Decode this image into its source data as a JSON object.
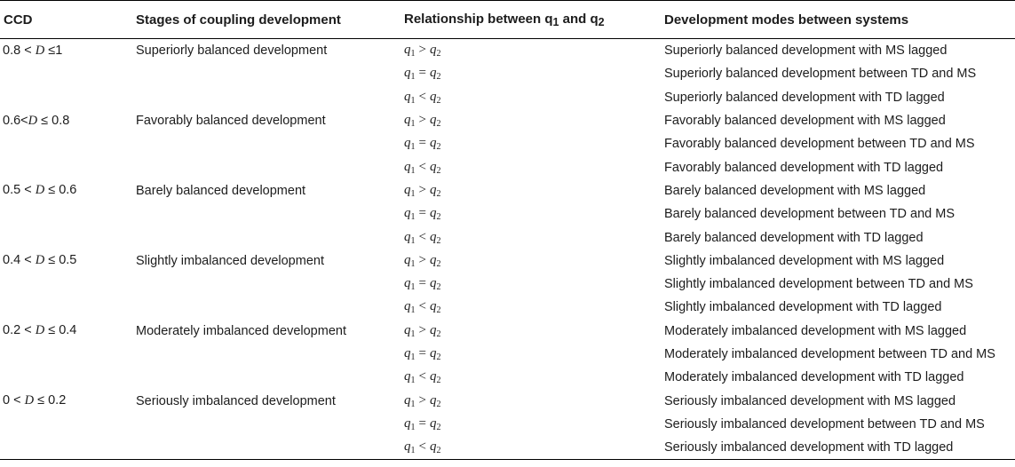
{
  "headers": {
    "ccd": "CCD",
    "stages": "Stages of coupling development",
    "relationship_prefix": "Relationship between q",
    "relationship_sub1": "1",
    "relationship_mid": " and q",
    "relationship_sub2": "2",
    "modes": "Development modes between systems"
  },
  "groups": [
    {
      "ccd": {
        "lo": "0.8",
        "op1": " < ",
        "var": "D",
        "op2": " ≤",
        "hi": "1"
      },
      "stage": "Superiorly balanced development",
      "rows": [
        {
          "op": ">",
          "mode": "Superiorly balanced development with MS lagged"
        },
        {
          "op": "=",
          "mode": "Superiorly balanced development between TD and MS"
        },
        {
          "op": "<",
          "mode": "Superiorly balanced development with TD lagged"
        }
      ]
    },
    {
      "ccd": {
        "lo": "0.6",
        "op1": "<",
        "var": "D",
        "op2": " ≤ ",
        "hi": "0.8"
      },
      "stage": "Favorably balanced development",
      "rows": [
        {
          "op": ">",
          "mode": "Favorably balanced development with MS lagged"
        },
        {
          "op": "=",
          "mode": "Favorably balanced development between TD and MS"
        },
        {
          "op": "<",
          "mode": "Favorably balanced development with TD lagged"
        }
      ]
    },
    {
      "ccd": {
        "lo": "0.5",
        "op1": " < ",
        "var": "D",
        "op2": " ≤ ",
        "hi": "0.6"
      },
      "stage": "Barely balanced development",
      "rows": [
        {
          "op": ">",
          "mode": "Barely balanced development with MS lagged"
        },
        {
          "op": "=",
          "mode": "Barely balanced development between TD and MS"
        },
        {
          "op": "<",
          "mode": "Barely balanced development with TD lagged"
        }
      ]
    },
    {
      "ccd": {
        "lo": "0.4",
        "op1": " < ",
        "var": "D",
        "op2": " ≤ ",
        "hi": "0.5"
      },
      "stage": "Slightly imbalanced development",
      "rows": [
        {
          "op": ">",
          "mode": "Slightly imbalanced development with MS lagged"
        },
        {
          "op": "=",
          "mode": "Slightly imbalanced development between TD and MS"
        },
        {
          "op": "<",
          "mode": "Slightly imbalanced development with TD lagged"
        }
      ]
    },
    {
      "ccd": {
        "lo": "0.2",
        "op1": " < ",
        "var": "D",
        "op2": " ≤ ",
        "hi": "0.4"
      },
      "stage": "Moderately imbalanced development",
      "rows": [
        {
          "op": ">",
          "mode": "Moderately imbalanced development with MS lagged"
        },
        {
          "op": "=",
          "mode": "Moderately imbalanced development between TD and MS"
        },
        {
          "op": "<",
          "mode": "Moderately imbalanced development with TD lagged"
        }
      ]
    },
    {
      "ccd": {
        "lo": "0",
        "op1": " < ",
        "var": "D",
        "op2": " ≤ ",
        "hi": "0.2"
      },
      "stage": "Seriously imbalanced development",
      "rows": [
        {
          "op": ">",
          "mode": "Seriously imbalanced development with MS lagged"
        },
        {
          "op": "=",
          "mode": "Seriously imbalanced development between TD and MS"
        },
        {
          "op": "<",
          "mode": "Seriously imbalanced development with TD lagged"
        }
      ]
    }
  ]
}
